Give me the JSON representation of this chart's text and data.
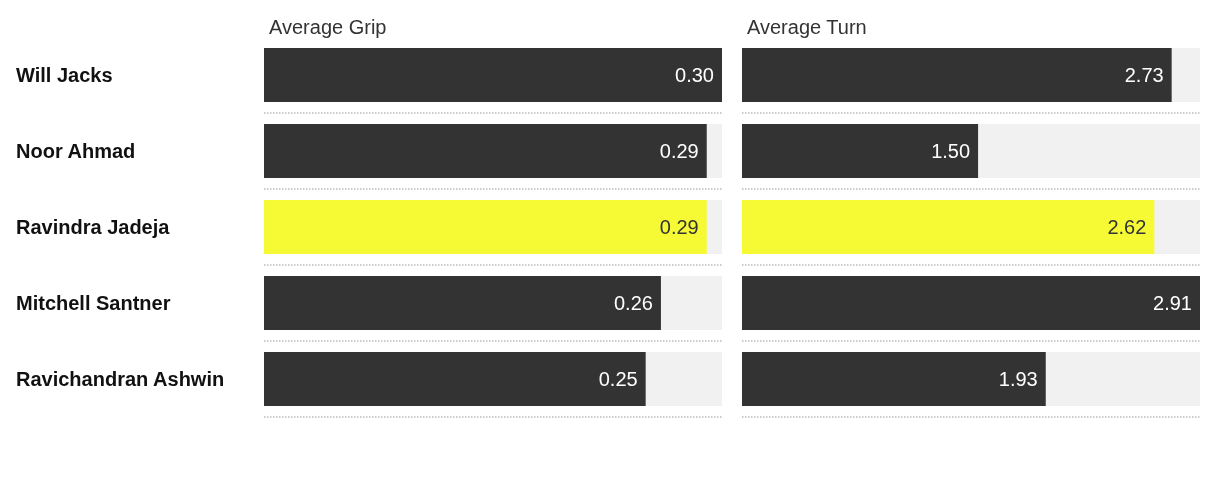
{
  "chart_data": [
    {
      "type": "bar",
      "orientation": "horizontal",
      "title": "Average Grip",
      "categories": [
        "Will Jacks",
        "Noor Ahmad",
        "Ravindra Jadeja",
        "Mitchell Santner",
        "Ravichandran Ashwin"
      ],
      "values": [
        0.3,
        0.29,
        0.29,
        0.26,
        0.25
      ],
      "colors": [
        "#333333",
        "#333333",
        "#f5fa35",
        "#333333",
        "#333333"
      ],
      "data_labels": true,
      "value_labels": [
        "0.30",
        "0.29",
        "0.29",
        "0.26",
        "0.25"
      ],
      "grid": "y",
      "tick_labels": "y"
    },
    {
      "type": "bar",
      "orientation": "horizontal",
      "title": "Average Turn",
      "categories": [
        null,
        null,
        null,
        null,
        null
      ],
      "values": [
        2.73,
        1.5,
        2.62,
        2.91,
        1.93
      ],
      "colors": [
        "#333333",
        "#333333",
        "#f5fa35",
        "#333333",
        "#333333"
      ],
      "data_labels": true,
      "value_labels": [
        "2.73",
        "1.50",
        "2.62",
        "2.91",
        "1.93"
      ],
      "grid": "y",
      "tick_labels": false
    }
  ]
}
